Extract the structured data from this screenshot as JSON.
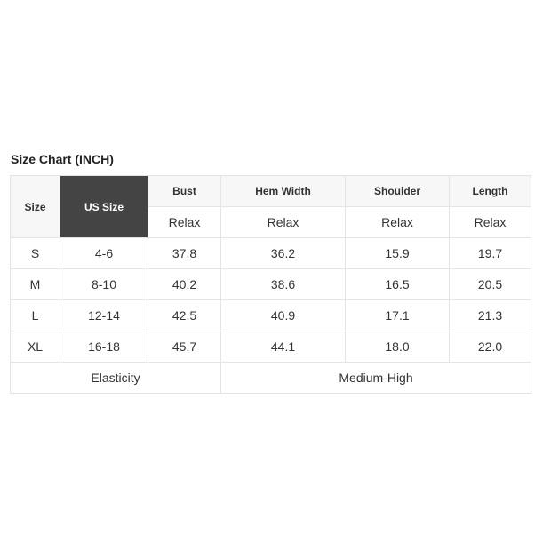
{
  "title": "Size Chart (INCH)",
  "headers": {
    "size": "Size",
    "us_size": "US Size",
    "cols": [
      "Bust",
      "Hem Width",
      "Shoulder",
      "Length"
    ],
    "fit": [
      "Relax",
      "Relax",
      "Relax",
      "Relax"
    ]
  },
  "rows": [
    [
      "S",
      "4-6",
      "37.8",
      "36.2",
      "15.9",
      "19.7"
    ],
    [
      "M",
      "8-10",
      "40.2",
      "38.6",
      "16.5",
      "20.5"
    ],
    [
      "L",
      "12-14",
      "42.5",
      "40.9",
      "17.1",
      "21.3"
    ],
    [
      "XL",
      "16-18",
      "45.7",
      "44.1",
      "18.0",
      "22.0"
    ]
  ],
  "footer": {
    "label": "Elasticity",
    "value": "Medium-High"
  },
  "colors": {
    "highlight_header": "#444444",
    "header_bg": "#f7f7f7",
    "border": "#e4e4e4"
  }
}
